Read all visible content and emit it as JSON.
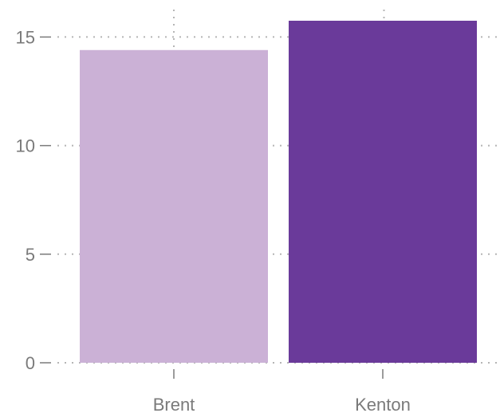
{
  "chart_data": {
    "type": "bar",
    "categories": [
      "Brent",
      "Kenton"
    ],
    "values": [
      14.4,
      15.75
    ],
    "colors": [
      "#cbb1d6",
      "#6a3a9a"
    ],
    "y_ticks": [
      0,
      5,
      10,
      15
    ],
    "ylim": [
      0,
      15.75
    ],
    "grid": true,
    "title": "",
    "xlabel": "",
    "ylabel": ""
  }
}
